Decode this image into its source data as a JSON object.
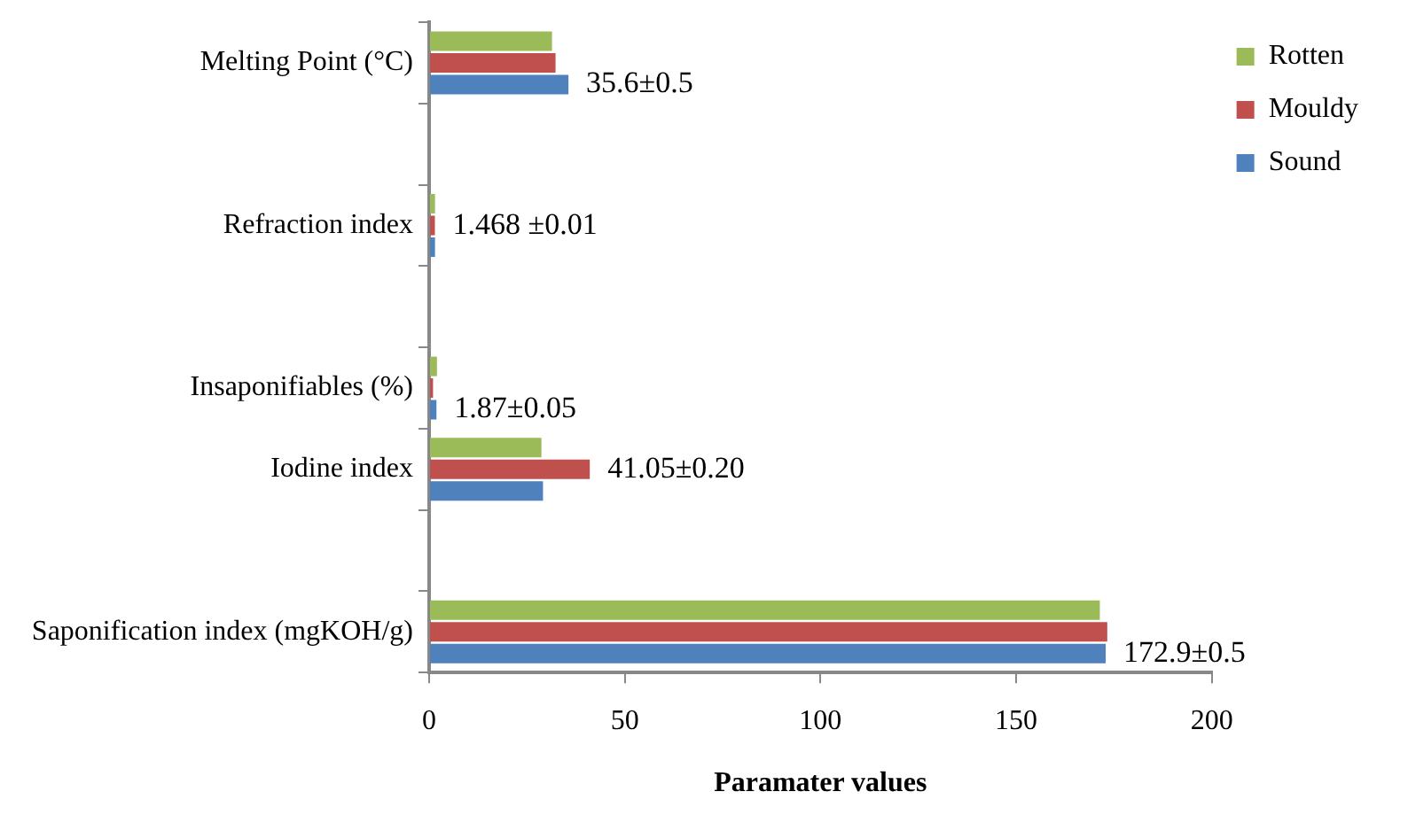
{
  "chart_data": {
    "type": "bar",
    "orientation": "horizontal",
    "xlabel": "Paramater values",
    "categories": [
      "Melting Point (°C)",
      null,
      "Refraction index",
      null,
      "Insaponifiables (%)",
      "Iodine index",
      null,
      "Saponification index (mgKOH/g)"
    ],
    "series": [
      {
        "name": "Rotten",
        "color": "#9bbb59",
        "values": [
          31.4,
          null,
          1.5,
          null,
          2,
          28.7,
          null,
          171.4
        ]
      },
      {
        "name": "Mouldy",
        "color": "#c0504d",
        "values": [
          32.3,
          null,
          1.468,
          null,
          1,
          41.05,
          null,
          173.3
        ],
        "value_labels": [
          null,
          null,
          "1.468 ±0.01",
          null,
          null,
          "41.05±0.20",
          null,
          null
        ]
      },
      {
        "name": "Sound",
        "color": "#4f81bd",
        "values": [
          35.6,
          null,
          1.5,
          null,
          1.87,
          29.1,
          null,
          172.9
        ],
        "value_labels": [
          "35.6±0.5",
          null,
          null,
          null,
          "1.87±0.05",
          null,
          null,
          "172.9±0.5"
        ]
      }
    ],
    "xlim": [
      0,
      200
    ],
    "xticks": [
      0,
      50,
      100,
      150,
      200
    ],
    "grid": false,
    "legend": "top right"
  }
}
